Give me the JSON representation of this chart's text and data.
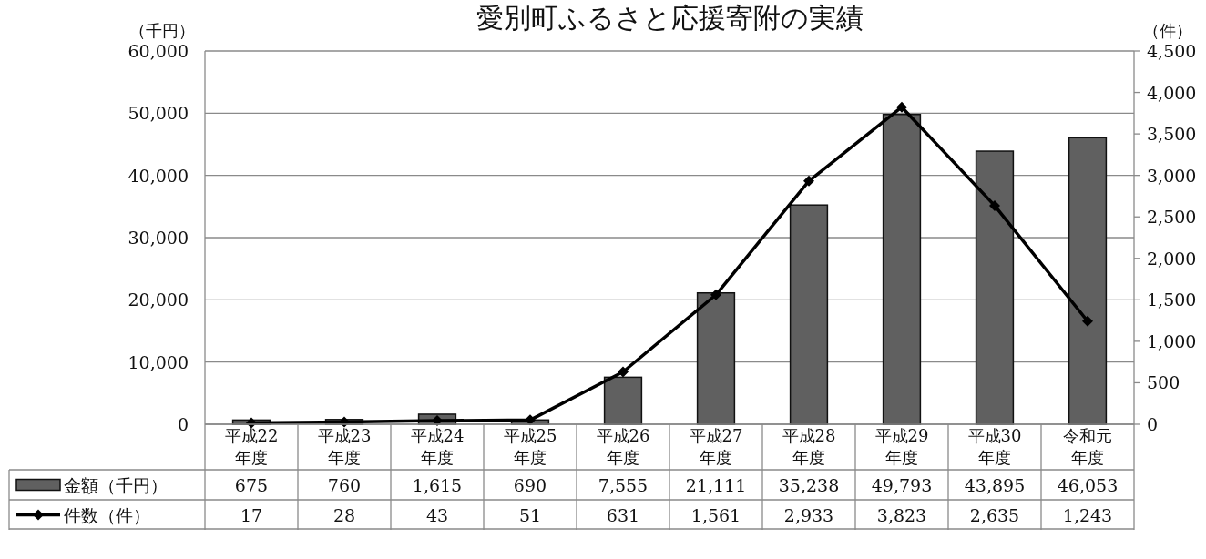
{
  "chart_data": {
    "type": "bar",
    "title": "愛別町ふるさと応援寄附の実績",
    "ylabel": "（千円）",
    "y2label": "（件）",
    "categories": [
      "平成22年度",
      "平成23年度",
      "平成24年度",
      "平成25年度",
      "平成26年度",
      "平成27年度",
      "平成28年度",
      "平成29年度",
      "平成30年度",
      "令和元年度"
    ],
    "series": [
      {
        "name": "金額（千円）",
        "color": "#606060",
        "values": [
          675,
          760,
          1615,
          690,
          7555,
          21111,
          35238,
          49793,
          43895,
          46053
        ],
        "value_labels": [
          "675",
          "760",
          "1,615",
          "690",
          "7,555",
          "21,111",
          "35,238",
          "49,793",
          "43,895",
          "46,053"
        ]
      },
      {
        "name": "件数（件）",
        "type": "line",
        "axis": "y2",
        "color": "#000000",
        "marker": "diamond",
        "values": [
          17,
          28,
          43,
          51,
          631,
          1561,
          2933,
          3823,
          2635,
          1243
        ],
        "value_labels": [
          "17",
          "28",
          "43",
          "51",
          "631",
          "1,561",
          "2,933",
          "3,823",
          "2,635",
          "1,243"
        ]
      }
    ],
    "ylim": [
      0,
      60000
    ],
    "yticks": [
      {
        "value": 0,
        "label": "0"
      },
      {
        "value": 10000,
        "label": "10,000"
      },
      {
        "value": 20000,
        "label": "20,000"
      },
      {
        "value": 30000,
        "label": "30,000"
      },
      {
        "value": 40000,
        "label": "40,000"
      },
      {
        "value": 50000,
        "label": "50,000"
      },
      {
        "value": 60000,
        "label": "60,000"
      }
    ],
    "y2lim": [
      0,
      4500
    ],
    "y2ticks": [
      {
        "value": 0,
        "label": "0"
      },
      {
        "value": 500,
        "label": "500"
      },
      {
        "value": 1000,
        "label": "1,000"
      },
      {
        "value": 1500,
        "label": "1,500"
      },
      {
        "value": 2000,
        "label": "2,000"
      },
      {
        "value": 2500,
        "label": "2,500"
      },
      {
        "value": 3000,
        "label": "3,000"
      },
      {
        "value": 3500,
        "label": "3,500"
      },
      {
        "value": 4000,
        "label": "4,000"
      },
      {
        "value": 4500,
        "label": "4,500"
      }
    ],
    "grid": "y",
    "legend": "bottom"
  }
}
